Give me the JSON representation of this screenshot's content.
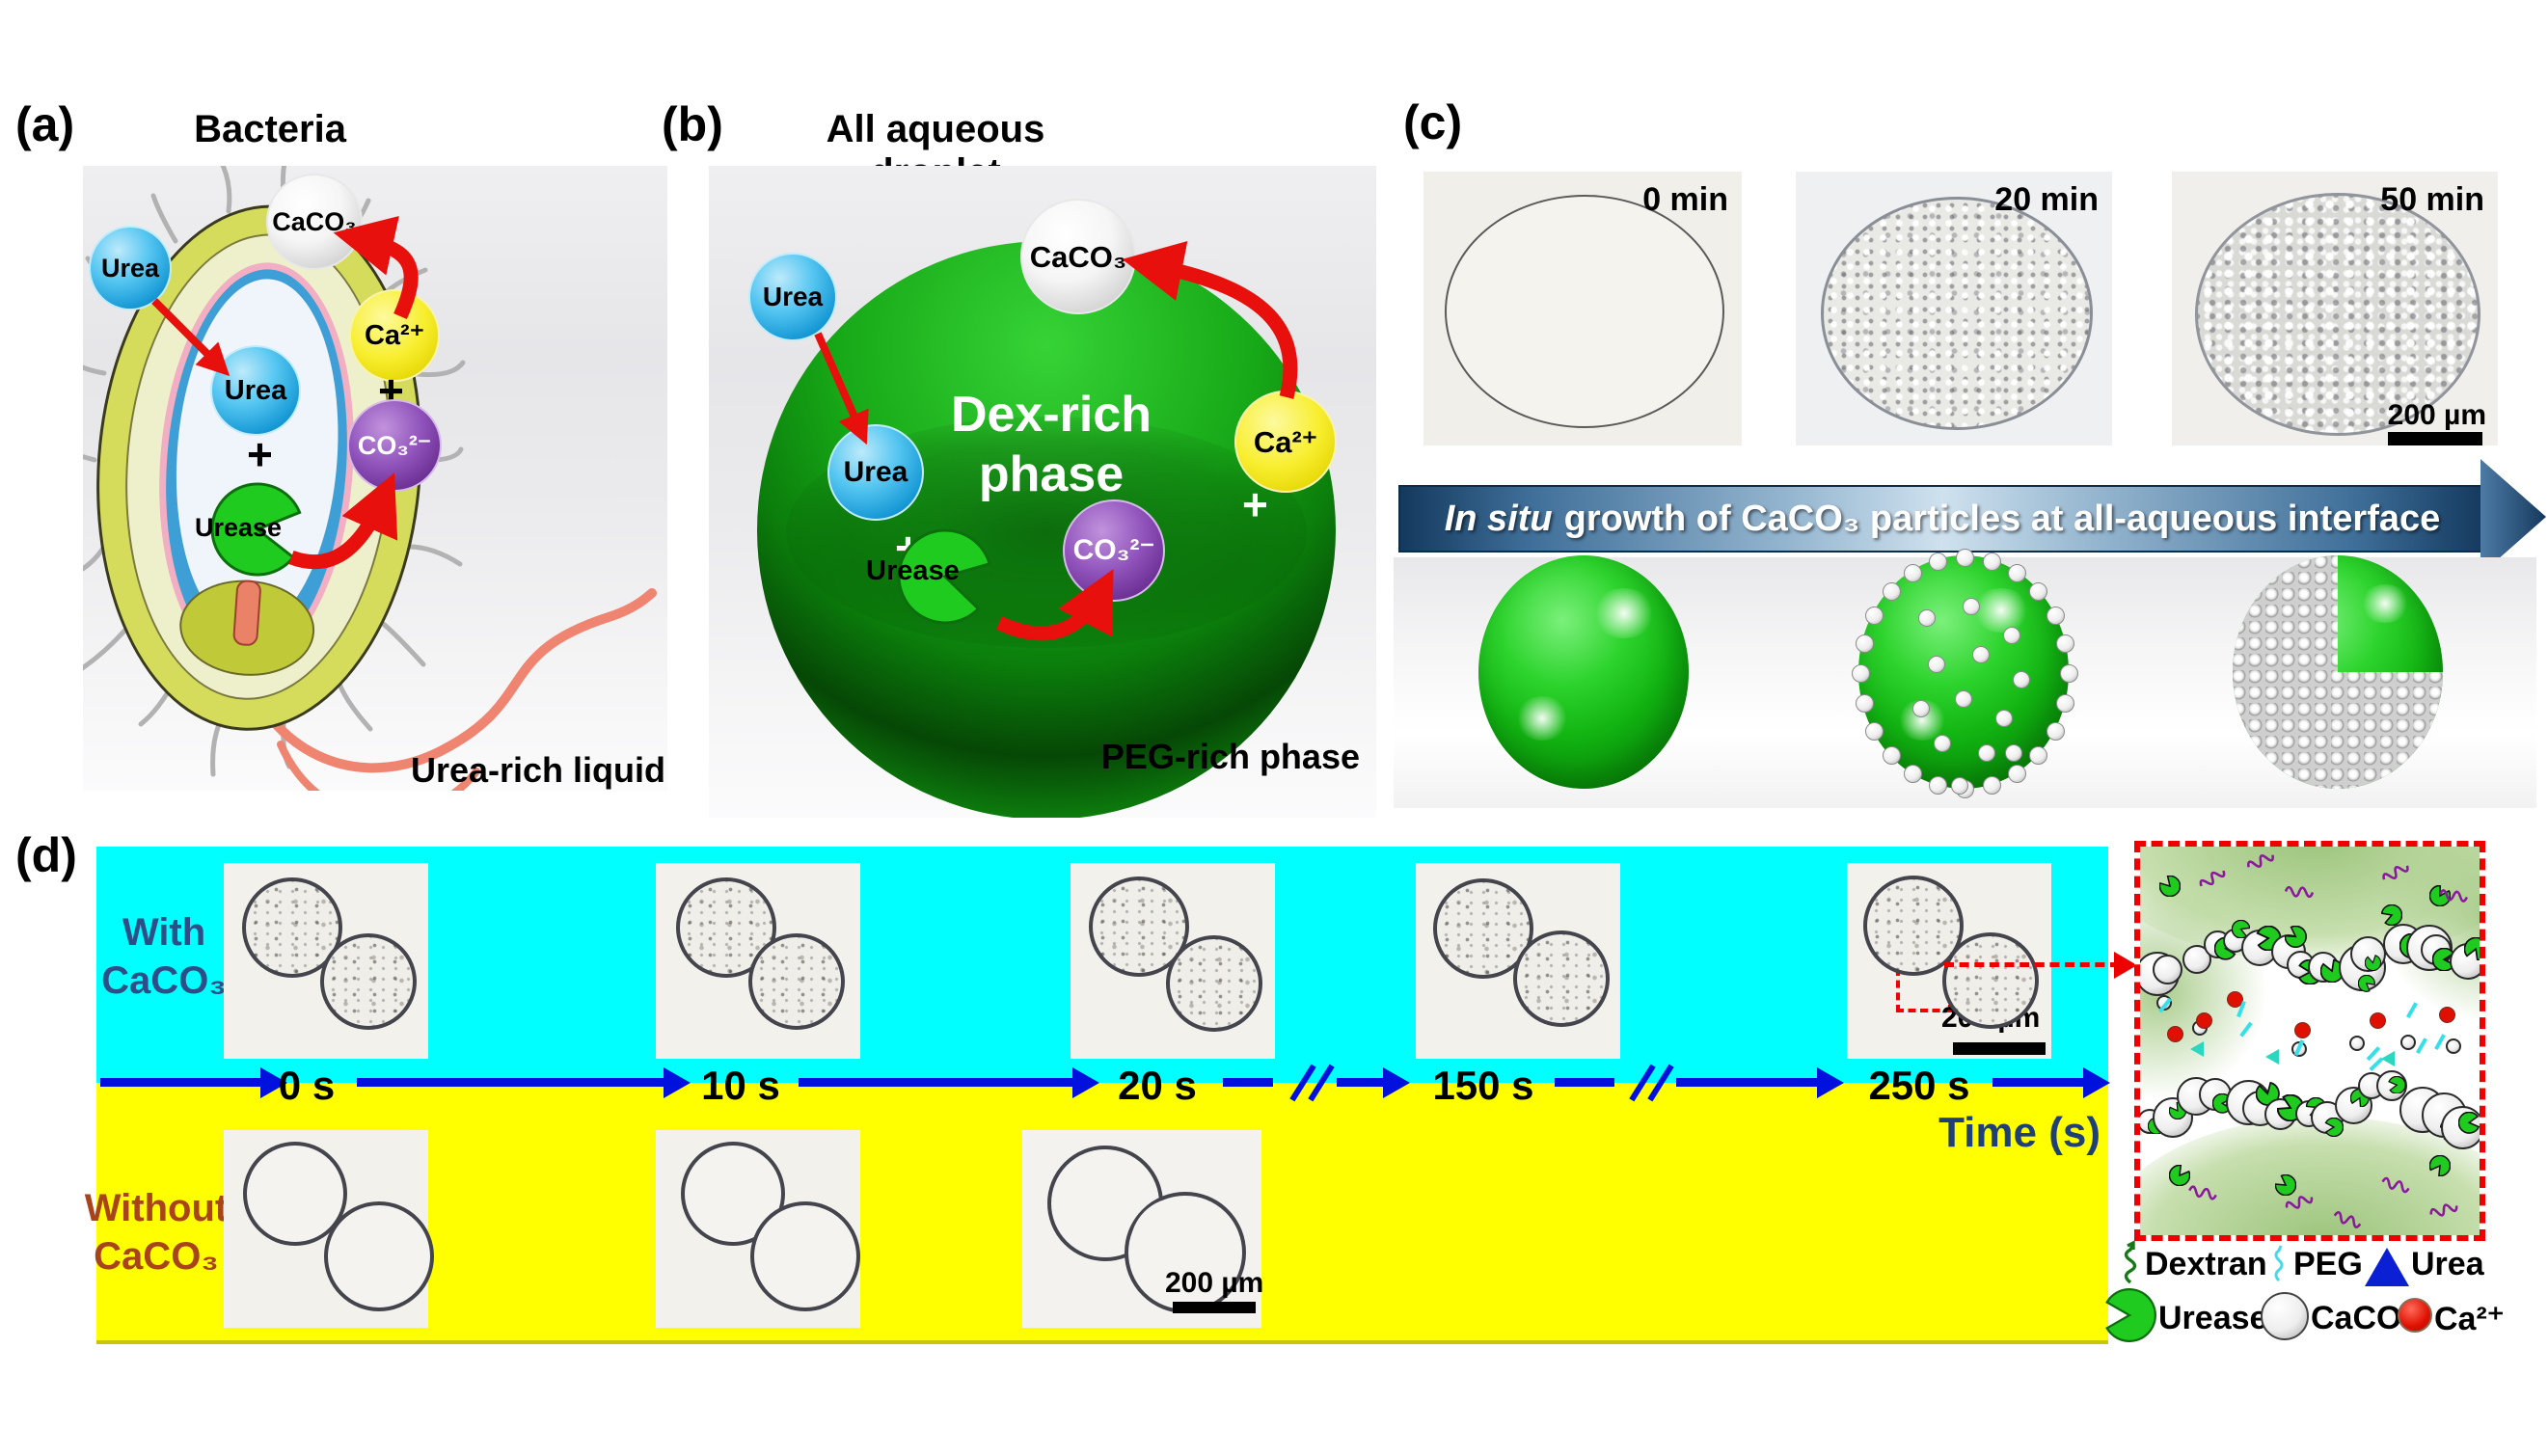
{
  "panel_a": {
    "label": "(a)",
    "title": "Bacteria",
    "caption": "Urea-rich liquid",
    "urea_out": "Urea",
    "urea_in": "Urea",
    "plus_inner": "+",
    "urease": "Urease",
    "caco3": "CaCO₃",
    "ca": "Ca²⁺",
    "plus_ions": "+",
    "co3": "CO₃²⁻"
  },
  "panel_b": {
    "label": "(b)",
    "title": "All aqueous droplet",
    "phase_line1": "Dex-rich",
    "phase_line2": "phase",
    "caption": "PEG-rich phase",
    "urea_out": "Urea",
    "urea_in": "Urea",
    "plus_inner": "+",
    "urease": "Urease",
    "caco3": "CaCO₃",
    "ca": "Ca²⁺",
    "plus_ions": "+",
    "co3": "CO₃²⁻"
  },
  "panel_c": {
    "label": "(c)",
    "timepoints": [
      "0 min",
      "20 min",
      "50 min"
    ],
    "scalebar": "200 µm",
    "banner_italic": "In situ",
    "banner_rest": "growth of CaCO₃ particles at all-aqueous interface"
  },
  "panel_d": {
    "label": "(d)",
    "with_line1": "With",
    "with_line2": "CaCO₃",
    "without_line1": "Without",
    "without_line2": "CaCO₃",
    "times": [
      "0 s",
      "10 s",
      "20 s",
      "150 s",
      "250 s"
    ],
    "axis_label": "Time (s)",
    "scalebar_top": "200 µm",
    "scalebar_bottom": "200 µm",
    "legend_row1": [
      {
        "icon": "dextran-squiggle-icon",
        "label": "Dextran"
      },
      {
        "icon": "peg-squiggle-icon",
        "label": "PEG"
      },
      {
        "icon": "urea-triangle-icon",
        "label": "Urea"
      }
    ],
    "legend_row2": [
      {
        "icon": "urease-pacman-icon",
        "label": "Urease"
      },
      {
        "icon": "caco3-sphere-icon",
        "label": "CaCO₃"
      },
      {
        "icon": "ca-ion-icon",
        "label": "Ca²⁺"
      }
    ]
  },
  "colors": {
    "urea_blue": "#2daae1",
    "calcium_yellow": "#f5e619",
    "carbonate_purple": "#7a3fa0",
    "urease_green": "#1ecb1e",
    "arrow_red": "#e8100c",
    "cyan_band": "#00ffff",
    "yellow_band": "#ffff00",
    "timeline_blue": "#0011dd",
    "with_text_blue": "#2d4e86",
    "without_text_brown": "#a8431a",
    "banner_blue": "#1c4a78"
  }
}
